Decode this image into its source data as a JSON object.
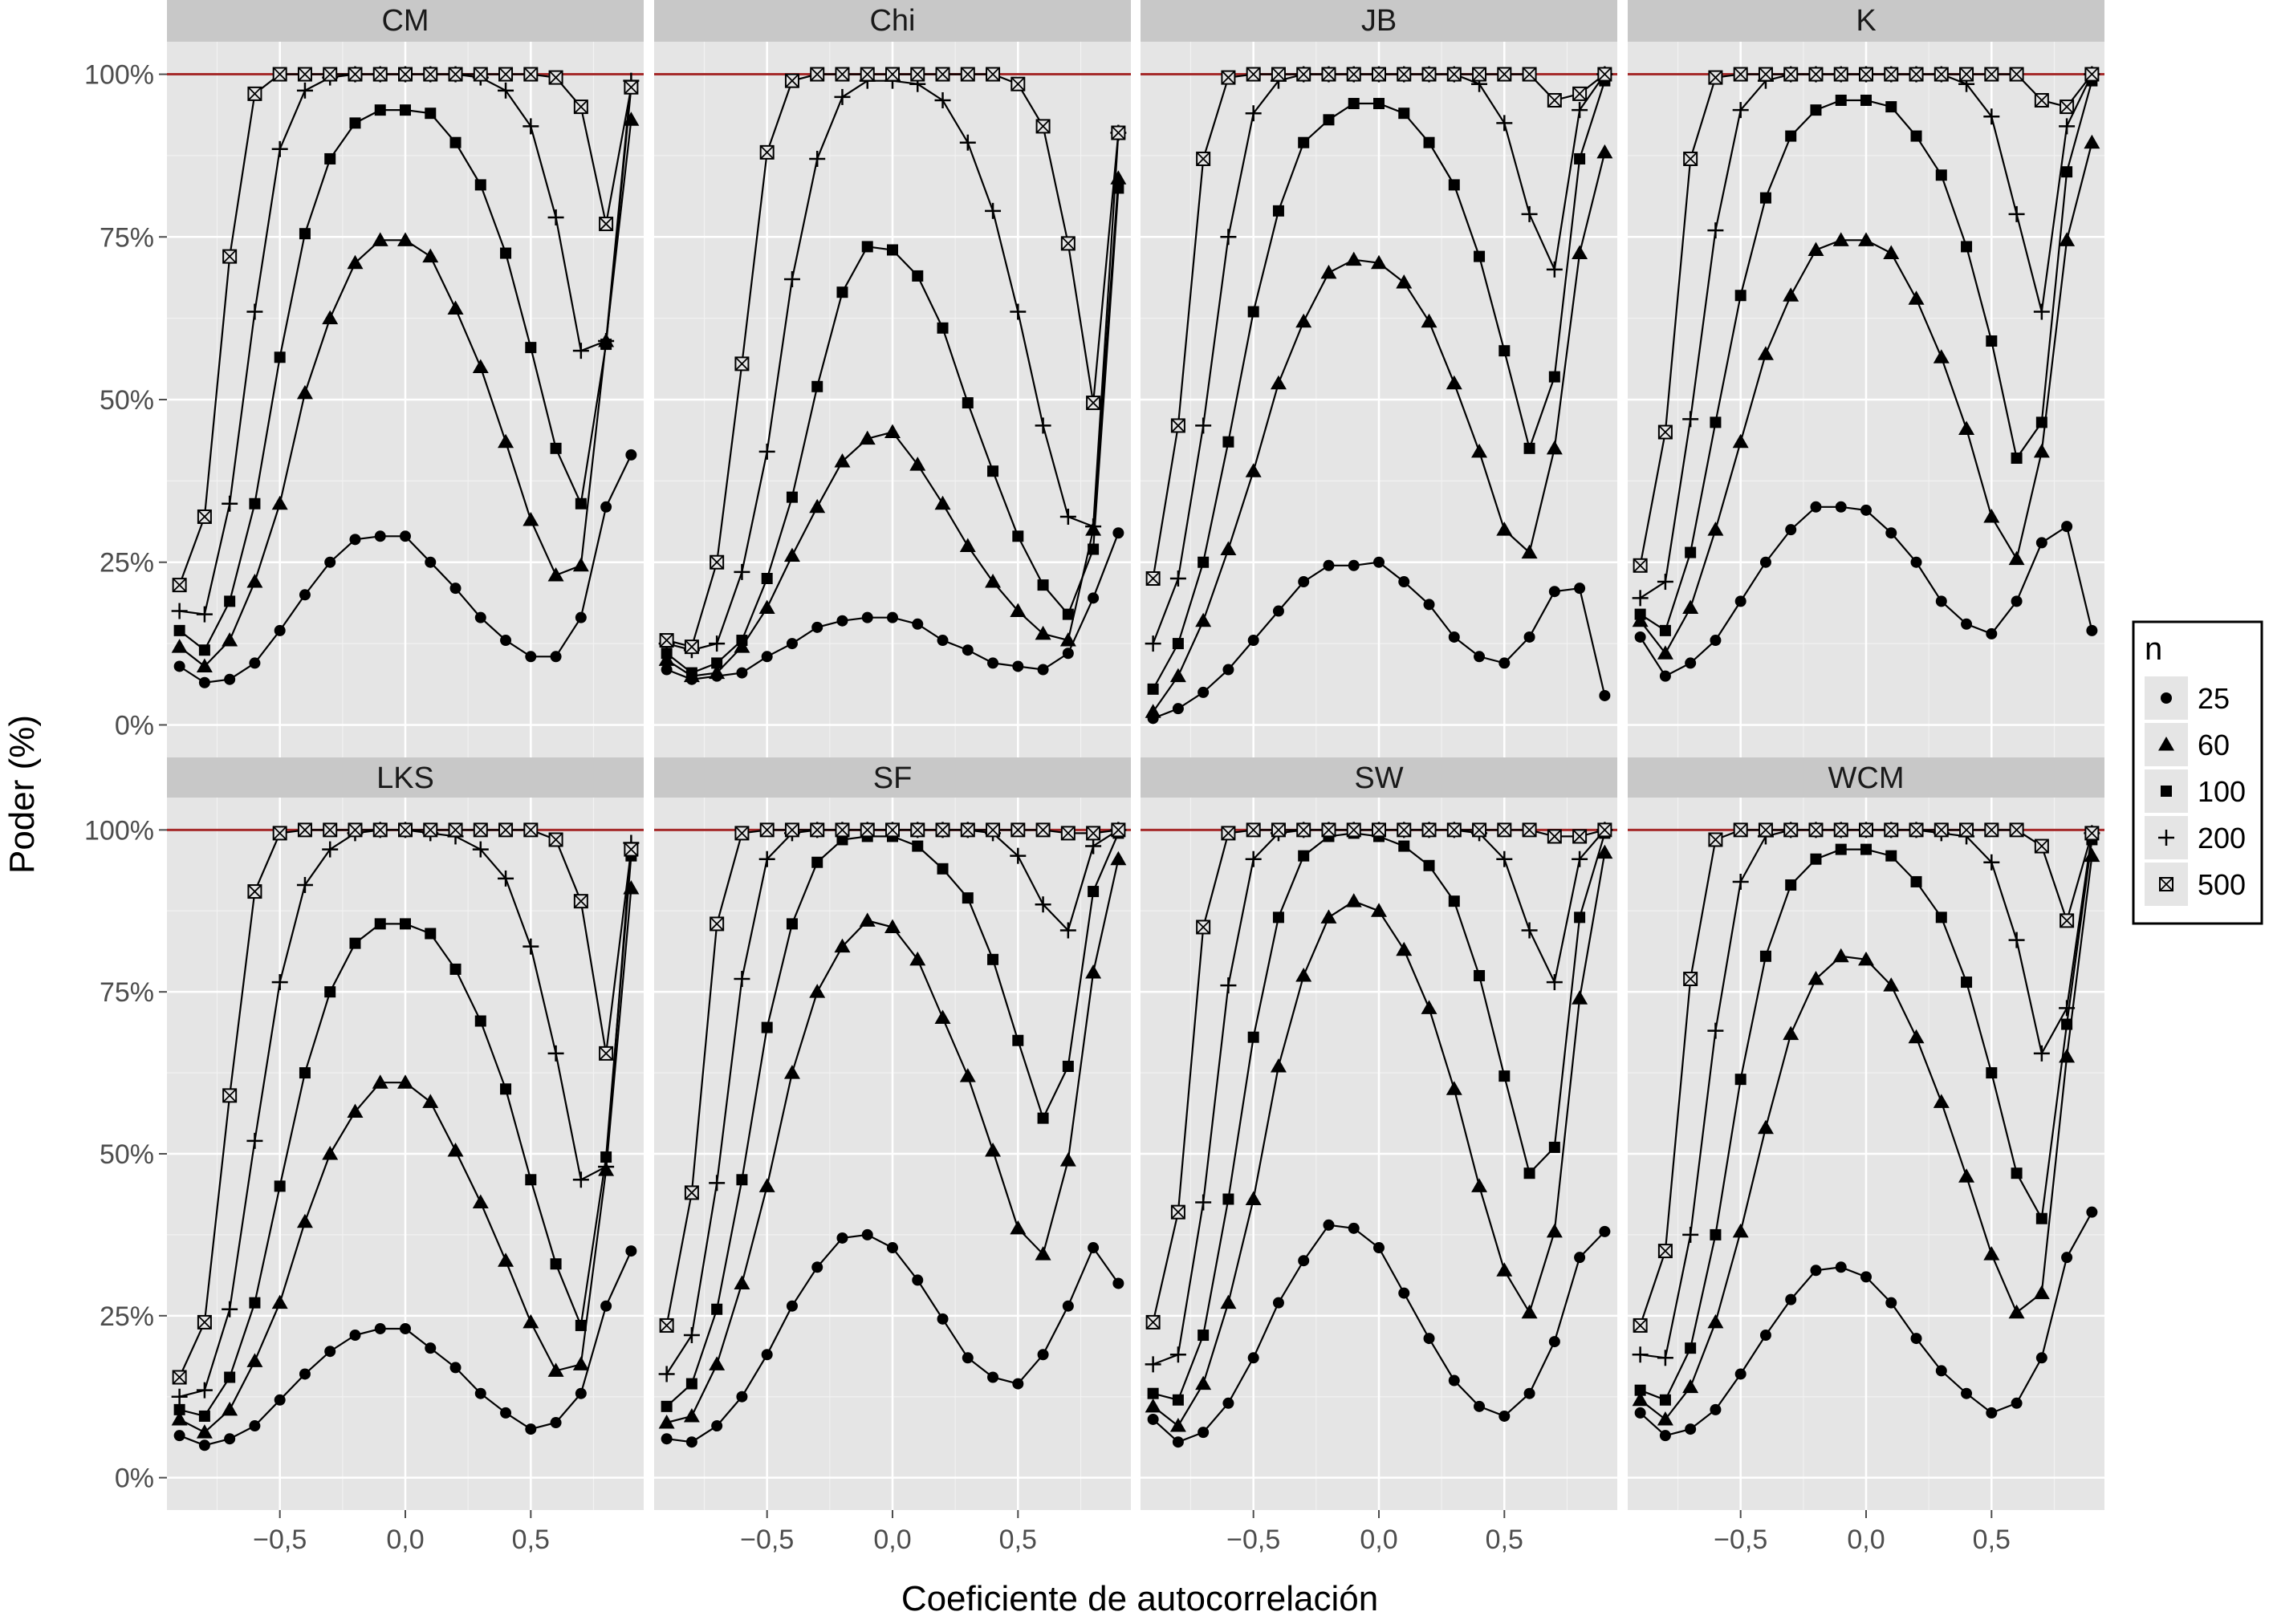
{
  "chart_data": {
    "type": "line",
    "facet_by": "test",
    "facets": [
      "CM",
      "Chi",
      "JB",
      "K",
      "LKS",
      "SF",
      "SW",
      "WCM"
    ],
    "x_axis_title": "Coeficiente de autocorrelación",
    "y_axis_title": "Poder (%)",
    "xlim": [
      -0.95,
      0.95
    ],
    "ylim": [
      -5,
      105
    ],
    "x_ticks": [
      -0.5,
      0.0,
      0.5
    ],
    "x_tick_labels": [
      "−0,5",
      "0,0",
      "0,5"
    ],
    "y_ticks": [
      0,
      25,
      50,
      75,
      100
    ],
    "y_tick_labels": [
      "0%",
      "25%",
      "50%",
      "75%",
      "100%"
    ],
    "reference_line": {
      "y": 100,
      "color": "#a52a2a"
    },
    "legend": {
      "title": "n",
      "position": "right",
      "items": [
        {
          "label": "25",
          "shape": "circle"
        },
        {
          "label": "60",
          "shape": "triangle"
        },
        {
          "label": "100",
          "shape": "square"
        },
        {
          "label": "200",
          "shape": "plus"
        },
        {
          "label": "500",
          "shape": "boxed-x"
        }
      ]
    },
    "x": [
      -0.9,
      -0.8,
      -0.7,
      -0.6,
      -0.5,
      -0.4,
      -0.3,
      -0.2,
      -0.1,
      0.0,
      0.1,
      0.2,
      0.3,
      0.4,
      0.5,
      0.6,
      0.7,
      0.8,
      0.9
    ],
    "panels": [
      {
        "facet": "CM",
        "series": [
          {
            "name": "25",
            "values": [
              9,
              6.5,
              7,
              9.5,
              14.5,
              20,
              25,
              28.5,
              29,
              29,
              25,
              21,
              16.5,
              13,
              10.5,
              10.5,
              16.5,
              33.5,
              41.5
            ]
          },
          {
            "name": "60",
            "values": [
              12,
              9,
              13,
              22,
              34,
              51,
              62.5,
              71,
              74.5,
              74.5,
              72,
              64,
              55,
              43.5,
              31.5,
              23,
              24.5,
              59,
              93
            ]
          },
          {
            "name": "100",
            "values": [
              14.5,
              11.5,
              19,
              34,
              56.5,
              75.5,
              87,
              92.5,
              94.5,
              94.5,
              94,
              89.5,
              83,
              72.5,
              58,
              42.5,
              34,
              58.5,
              98
            ]
          },
          {
            "name": "200",
            "values": [
              17.5,
              17,
              34,
              63.5,
              88.5,
              97.5,
              99.5,
              100,
              100,
              100,
              100,
              100,
              99.5,
              97.5,
              92,
              78,
              57.5,
              59,
              99
            ]
          },
          {
            "name": "500",
            "values": [
              21.5,
              32,
              72,
              97,
              100,
              100,
              100,
              100,
              100,
              100,
              100,
              100,
              100,
              100,
              100,
              99.5,
              95,
              77,
              98
            ]
          }
        ]
      },
      {
        "facet": "Chi",
        "series": [
          {
            "name": "25",
            "values": [
              8.5,
              7,
              7.5,
              8,
              10.5,
              12.5,
              15,
              16,
              16.5,
              16.5,
              15.5,
              13,
              11.5,
              9.5,
              9,
              8.5,
              11,
              19.5,
              29.5
            ]
          },
          {
            "name": "60",
            "values": [
              10,
              7.5,
              8,
              12,
              18,
              26,
              33.5,
              40.5,
              44,
              45,
              40,
              34,
              27.5,
              22,
              17.5,
              14,
              13,
              30,
              84
            ]
          },
          {
            "name": "100",
            "values": [
              11,
              8,
              9.5,
              13,
              22.5,
              35,
              52,
              66.5,
              73.5,
              73,
              69,
              61,
              49.5,
              39,
              29,
              21.5,
              17,
              27,
              82.5
            ]
          },
          {
            "name": "200",
            "values": [
              12.5,
              11.5,
              12.5,
              23.5,
              42,
              68.5,
              87,
              96.5,
              99,
              99,
              98.5,
              96,
              89.5,
              79,
              63.5,
              46,
              32,
              30.5,
              91
            ]
          },
          {
            "name": "500",
            "values": [
              13,
              12,
              25,
              55.5,
              88,
              99,
              100,
              100,
              100,
              100,
              100,
              100,
              100,
              100,
              98.5,
              92,
              74,
              49.5,
              91
            ]
          }
        ]
      },
      {
        "facet": "JB",
        "series": [
          {
            "name": "25",
            "values": [
              1,
              2.5,
              5,
              8.5,
              13,
              17.5,
              22,
              24.5,
              24.5,
              25,
              22,
              18.5,
              13.5,
              10.5,
              9.5,
              13.5,
              20.5,
              21,
              4.5
            ]
          },
          {
            "name": "60",
            "values": [
              2,
              7.5,
              16,
              27,
              39,
              52.5,
              62,
              69.5,
              71.5,
              71,
              68,
              62,
              52.5,
              42,
              30,
              26.5,
              42.5,
              72.5,
              88
            ]
          },
          {
            "name": "100",
            "values": [
              5.5,
              12.5,
              25,
              43.5,
              63.5,
              79,
              89.5,
              93,
              95.5,
              95.5,
              94,
              89.5,
              83,
              72,
              57.5,
              42.5,
              53.5,
              87,
              99
            ]
          },
          {
            "name": "200",
            "values": [
              12.5,
              22.5,
              46,
              75,
              94,
              99,
              100,
              100,
              100,
              100,
              100,
              100,
              100,
              98.5,
              92.5,
              78.5,
              70,
              94.5,
              100
            ]
          },
          {
            "name": "500",
            "values": [
              22.5,
              46,
              87,
              99.5,
              100,
              100,
              100,
              100,
              100,
              100,
              100,
              100,
              100,
              100,
              100,
              100,
              96,
              97,
              100
            ]
          }
        ]
      },
      {
        "facet": "K",
        "series": [
          {
            "name": "25",
            "values": [
              13.5,
              7.5,
              9.5,
              13,
              19,
              25,
              30,
              33.5,
              33.5,
              33,
              29.5,
              25,
              19,
              15.5,
              14,
              19,
              28,
              30.5,
              14.5
            ]
          },
          {
            "name": "60",
            "values": [
              16,
              11,
              18,
              30,
              43.5,
              57,
              66,
              73,
              74.5,
              74.5,
              72.5,
              65.5,
              56.5,
              45.5,
              32,
              25.5,
              42,
              74.5,
              89.5
            ]
          },
          {
            "name": "100",
            "values": [
              17,
              14.5,
              26.5,
              46.5,
              66,
              81,
              90.5,
              94.5,
              96,
              96,
              95,
              90.5,
              84.5,
              73.5,
              59,
              41,
              46.5,
              85,
              99
            ]
          },
          {
            "name": "200",
            "values": [
              19.5,
              22,
              47,
              76,
              94.5,
              99,
              100,
              100,
              100,
              100,
              100,
              100,
              100,
              98.5,
              93.5,
              78.5,
              63.5,
              92,
              100
            ]
          },
          {
            "name": "500",
            "values": [
              24.5,
              45,
              87,
              99.5,
              100,
              100,
              100,
              100,
              100,
              100,
              100,
              100,
              100,
              100,
              100,
              100,
              96,
              95,
              100
            ]
          }
        ]
      },
      {
        "facet": "LKS",
        "series": [
          {
            "name": "25",
            "values": [
              6.5,
              5,
              6,
              8,
              12,
              16,
              19.5,
              22,
              23,
              23,
              20,
              17,
              13,
              10,
              7.5,
              8.5,
              13,
              26.5,
              35
            ]
          },
          {
            "name": "60",
            "values": [
              9,
              7,
              10.5,
              18,
              27,
              39.5,
              50,
              56.5,
              61,
              61,
              58,
              50.5,
              42.5,
              33.5,
              24,
              16.5,
              17.5,
              47.5,
              91
            ]
          },
          {
            "name": "100",
            "values": [
              10.5,
              9.5,
              15.5,
              27,
              45,
              62.5,
              75,
              82.5,
              85.5,
              85.5,
              84,
              78.5,
              70.5,
              60,
              46,
              33,
              23.5,
              49.5,
              96
            ]
          },
          {
            "name": "200",
            "values": [
              12.5,
              13.5,
              26,
              52,
              76.5,
              91.5,
              97,
              99.5,
              100,
              100,
              99.5,
              99,
              97,
              92.5,
              82,
              65.5,
              46,
              48,
              98
            ]
          },
          {
            "name": "500",
            "values": [
              15.5,
              24,
              59,
              90.5,
              99.5,
              100,
              100,
              100,
              100,
              100,
              100,
              100,
              100,
              100,
              100,
              98.5,
              89,
              65.5,
              97
            ]
          }
        ]
      },
      {
        "facet": "SF",
        "series": [
          {
            "name": "25",
            "values": [
              6,
              5.5,
              8,
              12.5,
              19,
              26.5,
              32.5,
              37,
              37.5,
              35.5,
              30.5,
              24.5,
              18.5,
              15.5,
              14.5,
              19,
              26.5,
              35.5,
              30
            ]
          },
          {
            "name": "60",
            "values": [
              8.5,
              9.5,
              17.5,
              30,
              45,
              62.5,
              75,
              82,
              86,
              85,
              80,
              71,
              62,
              50.5,
              38.5,
              34.5,
              49,
              78,
              95.5
            ]
          },
          {
            "name": "100",
            "values": [
              11,
              14.5,
              26,
              46,
              69.5,
              85.5,
              95,
              98.5,
              99,
              99,
              97.5,
              94,
              89.5,
              80,
              67.5,
              55.5,
              63.5,
              90.5,
              99.5
            ]
          },
          {
            "name": "200",
            "values": [
              16,
              22,
              45.5,
              77,
              95.5,
              99.5,
              100,
              100,
              100,
              100,
              100,
              100,
              100,
              99.5,
              96,
              88.5,
              84.5,
              97.5,
              100
            ]
          },
          {
            "name": "500",
            "values": [
              23.5,
              44,
              85.5,
              99.5,
              100,
              100,
              100,
              100,
              100,
              100,
              100,
              100,
              100,
              100,
              100,
              100,
              99.5,
              99.5,
              100
            ]
          }
        ]
      },
      {
        "facet": "SW",
        "series": [
          {
            "name": "25",
            "values": [
              9,
              5.5,
              7,
              11.5,
              18.5,
              27,
              33.5,
              39,
              38.5,
              35.5,
              28.5,
              21.5,
              15,
              11,
              9.5,
              13,
              21,
              34,
              38
            ]
          },
          {
            "name": "60",
            "values": [
              11,
              8,
              14.5,
              27,
              43,
              63.5,
              77.5,
              86.5,
              89,
              87.5,
              81.5,
              72.5,
              60,
              45,
              32,
              25.5,
              38,
              74,
              96.5
            ]
          },
          {
            "name": "100",
            "values": [
              13,
              12,
              22,
              43,
              68,
              86.5,
              96,
              99,
              99.5,
              99,
              97.5,
              94.5,
              89,
              77.5,
              62,
              47,
              51,
              86.5,
              99.5
            ]
          },
          {
            "name": "200",
            "values": [
              17.5,
              19,
              42.5,
              76,
              95.5,
              99.5,
              100,
              100,
              100,
              100,
              100,
              100,
              100,
              99.5,
              95.5,
              84.5,
              76.5,
              95.5,
              100
            ]
          },
          {
            "name": "500",
            "values": [
              24,
              41,
              85,
              99.5,
              100,
              100,
              100,
              100,
              100,
              100,
              100,
              100,
              100,
              100,
              100,
              100,
              99,
              99,
              100
            ]
          }
        ]
      },
      {
        "facet": "WCM",
        "series": [
          {
            "name": "25",
            "values": [
              10,
              6.5,
              7.5,
              10.5,
              16,
              22,
              27.5,
              32,
              32.5,
              31,
              27,
              21.5,
              16.5,
              13,
              10,
              11.5,
              18.5,
              34,
              41
            ]
          },
          {
            "name": "60",
            "values": [
              12,
              9,
              14,
              24,
              38,
              54,
              68.5,
              77,
              80.5,
              80,
              76,
              68,
              58,
              46.5,
              34.5,
              25.5,
              28.5,
              65,
              96
            ]
          },
          {
            "name": "100",
            "values": [
              13.5,
              12,
              20,
              37.5,
              61.5,
              80.5,
              91.5,
              95.5,
              97,
              97,
              96,
              92,
              86.5,
              76.5,
              62.5,
              47,
              40,
              70,
              98.5
            ]
          },
          {
            "name": "200",
            "values": [
              19,
              18.5,
              37.5,
              69,
              92,
              99,
              100,
              100,
              100,
              100,
              100,
              100,
              99.5,
              99,
              95,
              83,
              65.5,
              72.5,
              99.5
            ]
          },
          {
            "name": "500",
            "values": [
              23.5,
              35,
              77,
              98.5,
              100,
              100,
              100,
              100,
              100,
              100,
              100,
              100,
              100,
              100,
              100,
              100,
              97.5,
              86,
              99.5
            ]
          }
        ]
      }
    ]
  }
}
